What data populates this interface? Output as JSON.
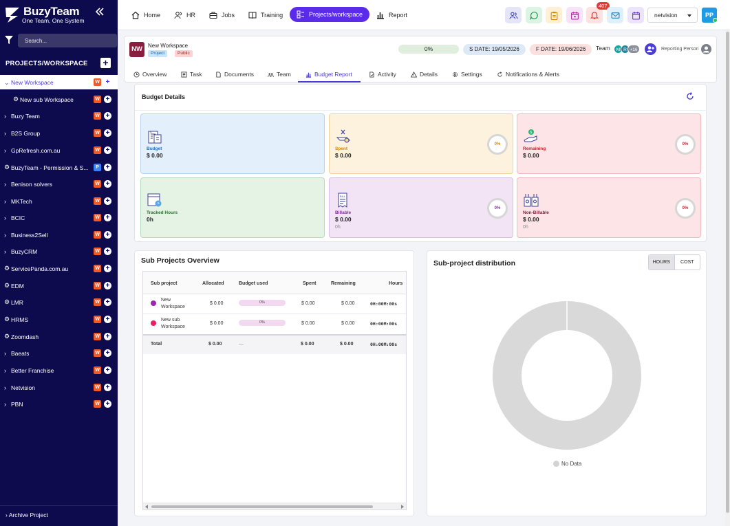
{
  "brand": {
    "title": "BuzyTeam",
    "tagline": "One Team, One System"
  },
  "sidebar": {
    "search_placeholder": "Search...",
    "section_title": "PROJECTS/WORKSPACE",
    "items": [
      {
        "label": "New Workspace",
        "badge": "W",
        "prefix": "chevron",
        "active": true
      },
      {
        "label": "New sub Workspace",
        "badge": "W",
        "prefix": "dot"
      },
      {
        "label": "Buzy Team",
        "badge": "W",
        "prefix": "chevron"
      },
      {
        "label": "B2S Group",
        "badge": "W",
        "prefix": "chevron"
      },
      {
        "label": "GpRefresh.com.au",
        "badge": "W",
        "prefix": "chevron"
      },
      {
        "label": "BuzyTeam - Permission & S...",
        "badge": "P",
        "prefix": "dot"
      },
      {
        "label": "Benison solvers",
        "badge": "W",
        "prefix": "chevron"
      },
      {
        "label": "MKTech",
        "badge": "W",
        "prefix": "chevron"
      },
      {
        "label": "BCIC",
        "badge": "W",
        "prefix": "chevron"
      },
      {
        "label": "Business2Sell",
        "badge": "W",
        "prefix": "chevron"
      },
      {
        "label": "BuzyCRM",
        "badge": "W",
        "prefix": "chevron"
      },
      {
        "label": "ServicePanda.com.au",
        "badge": "W",
        "prefix": "dot"
      },
      {
        "label": "EDM",
        "badge": "W",
        "prefix": "dot"
      },
      {
        "label": "LMR",
        "badge": "W",
        "prefix": "dot"
      },
      {
        "label": "HRMS",
        "badge": "W",
        "prefix": "dot"
      },
      {
        "label": "Zoomdash",
        "badge": "W",
        "prefix": "dot"
      },
      {
        "label": "Baeats",
        "badge": "W",
        "prefix": "chevron"
      },
      {
        "label": "Better Franchise",
        "badge": "W",
        "prefix": "chevron"
      },
      {
        "label": "Netvision",
        "badge": "W",
        "prefix": "chevron"
      },
      {
        "label": "PBN",
        "badge": "W",
        "prefix": "chevron"
      }
    ],
    "archive_label": "Archive Project"
  },
  "topnav": {
    "items": [
      {
        "label": "Home",
        "icon": "home-icon"
      },
      {
        "label": "HR",
        "icon": "users-icon"
      },
      {
        "label": "Jobs",
        "icon": "briefcase-icon"
      },
      {
        "label": "Training",
        "icon": "book-icon"
      },
      {
        "label": "Projects/workspace",
        "icon": "projects-icon",
        "active": true
      },
      {
        "label": "Report",
        "icon": "bar-chart-icon"
      }
    ],
    "notification_count": "407",
    "org": "netvision",
    "user_initials": "PP",
    "colors": {
      "accent": "#5b2bea",
      "sidebar": "#0d0b4e"
    }
  },
  "workspace": {
    "initials": "NW",
    "name": "New Workspace",
    "tags": [
      "Project",
      "Public"
    ],
    "progress": "0%",
    "start_date": "S DATE: 19/05/2026",
    "finish_date": "F DATE: 19/06/2026",
    "team_label": "Team",
    "team_avatars": [
      "M",
      "R",
      "+16"
    ],
    "reporting_label": "Reporting Person",
    "tabs": [
      "Overview",
      "Task",
      "Documents",
      "Team",
      "Budget Report",
      "Activity",
      "Details",
      "Settings",
      "Notifications & Alerts"
    ],
    "active_tab": "Budget Report"
  },
  "budget": {
    "title": "Budget Details",
    "tiles": [
      {
        "name": "Budget",
        "value": "$ 0.00"
      },
      {
        "name": "Spent",
        "value": "$ 0.00",
        "percent": "0%"
      },
      {
        "name": "Remaining",
        "value": "$ 0.00",
        "percent": "0%"
      },
      {
        "name": "Tracked Hours",
        "value": "0h"
      },
      {
        "name": "Billable",
        "value": "$ 0.00",
        "sub": "0h",
        "percent": "0%"
      },
      {
        "name": "Non-Billable",
        "value": "$ 0.00",
        "sub": "0h",
        "percent": "0%"
      }
    ]
  },
  "subprojects": {
    "title": "Sub Projects Overview",
    "columns": [
      "Sub project",
      "Allocated",
      "Budget used",
      "Spent",
      "Remaining",
      "Hours"
    ],
    "rows": [
      {
        "name": "New Workspace",
        "allocated": "$ 0.00",
        "used": "0%",
        "spent": "$ 0.00",
        "remaining": "$ 0.00",
        "hours": "0H:00M:00s",
        "color": "#9c27b0"
      },
      {
        "name": "New sub Workspace",
        "allocated": "$ 0.00",
        "used": "0%",
        "spent": "$ 0.00",
        "remaining": "$ 0.00",
        "hours": "0H:00M:00s",
        "color": "#e91e63"
      }
    ],
    "total": {
      "label": "Total",
      "allocated": "$ 0.00",
      "used": "—",
      "spent": "$ 0.00",
      "remaining": "$ 0.00",
      "hours": "0H:00M:00s"
    }
  },
  "distribution": {
    "title": "Sub-project distribution",
    "toggle": [
      "HOURS",
      "COST"
    ],
    "legend": "No Data"
  }
}
